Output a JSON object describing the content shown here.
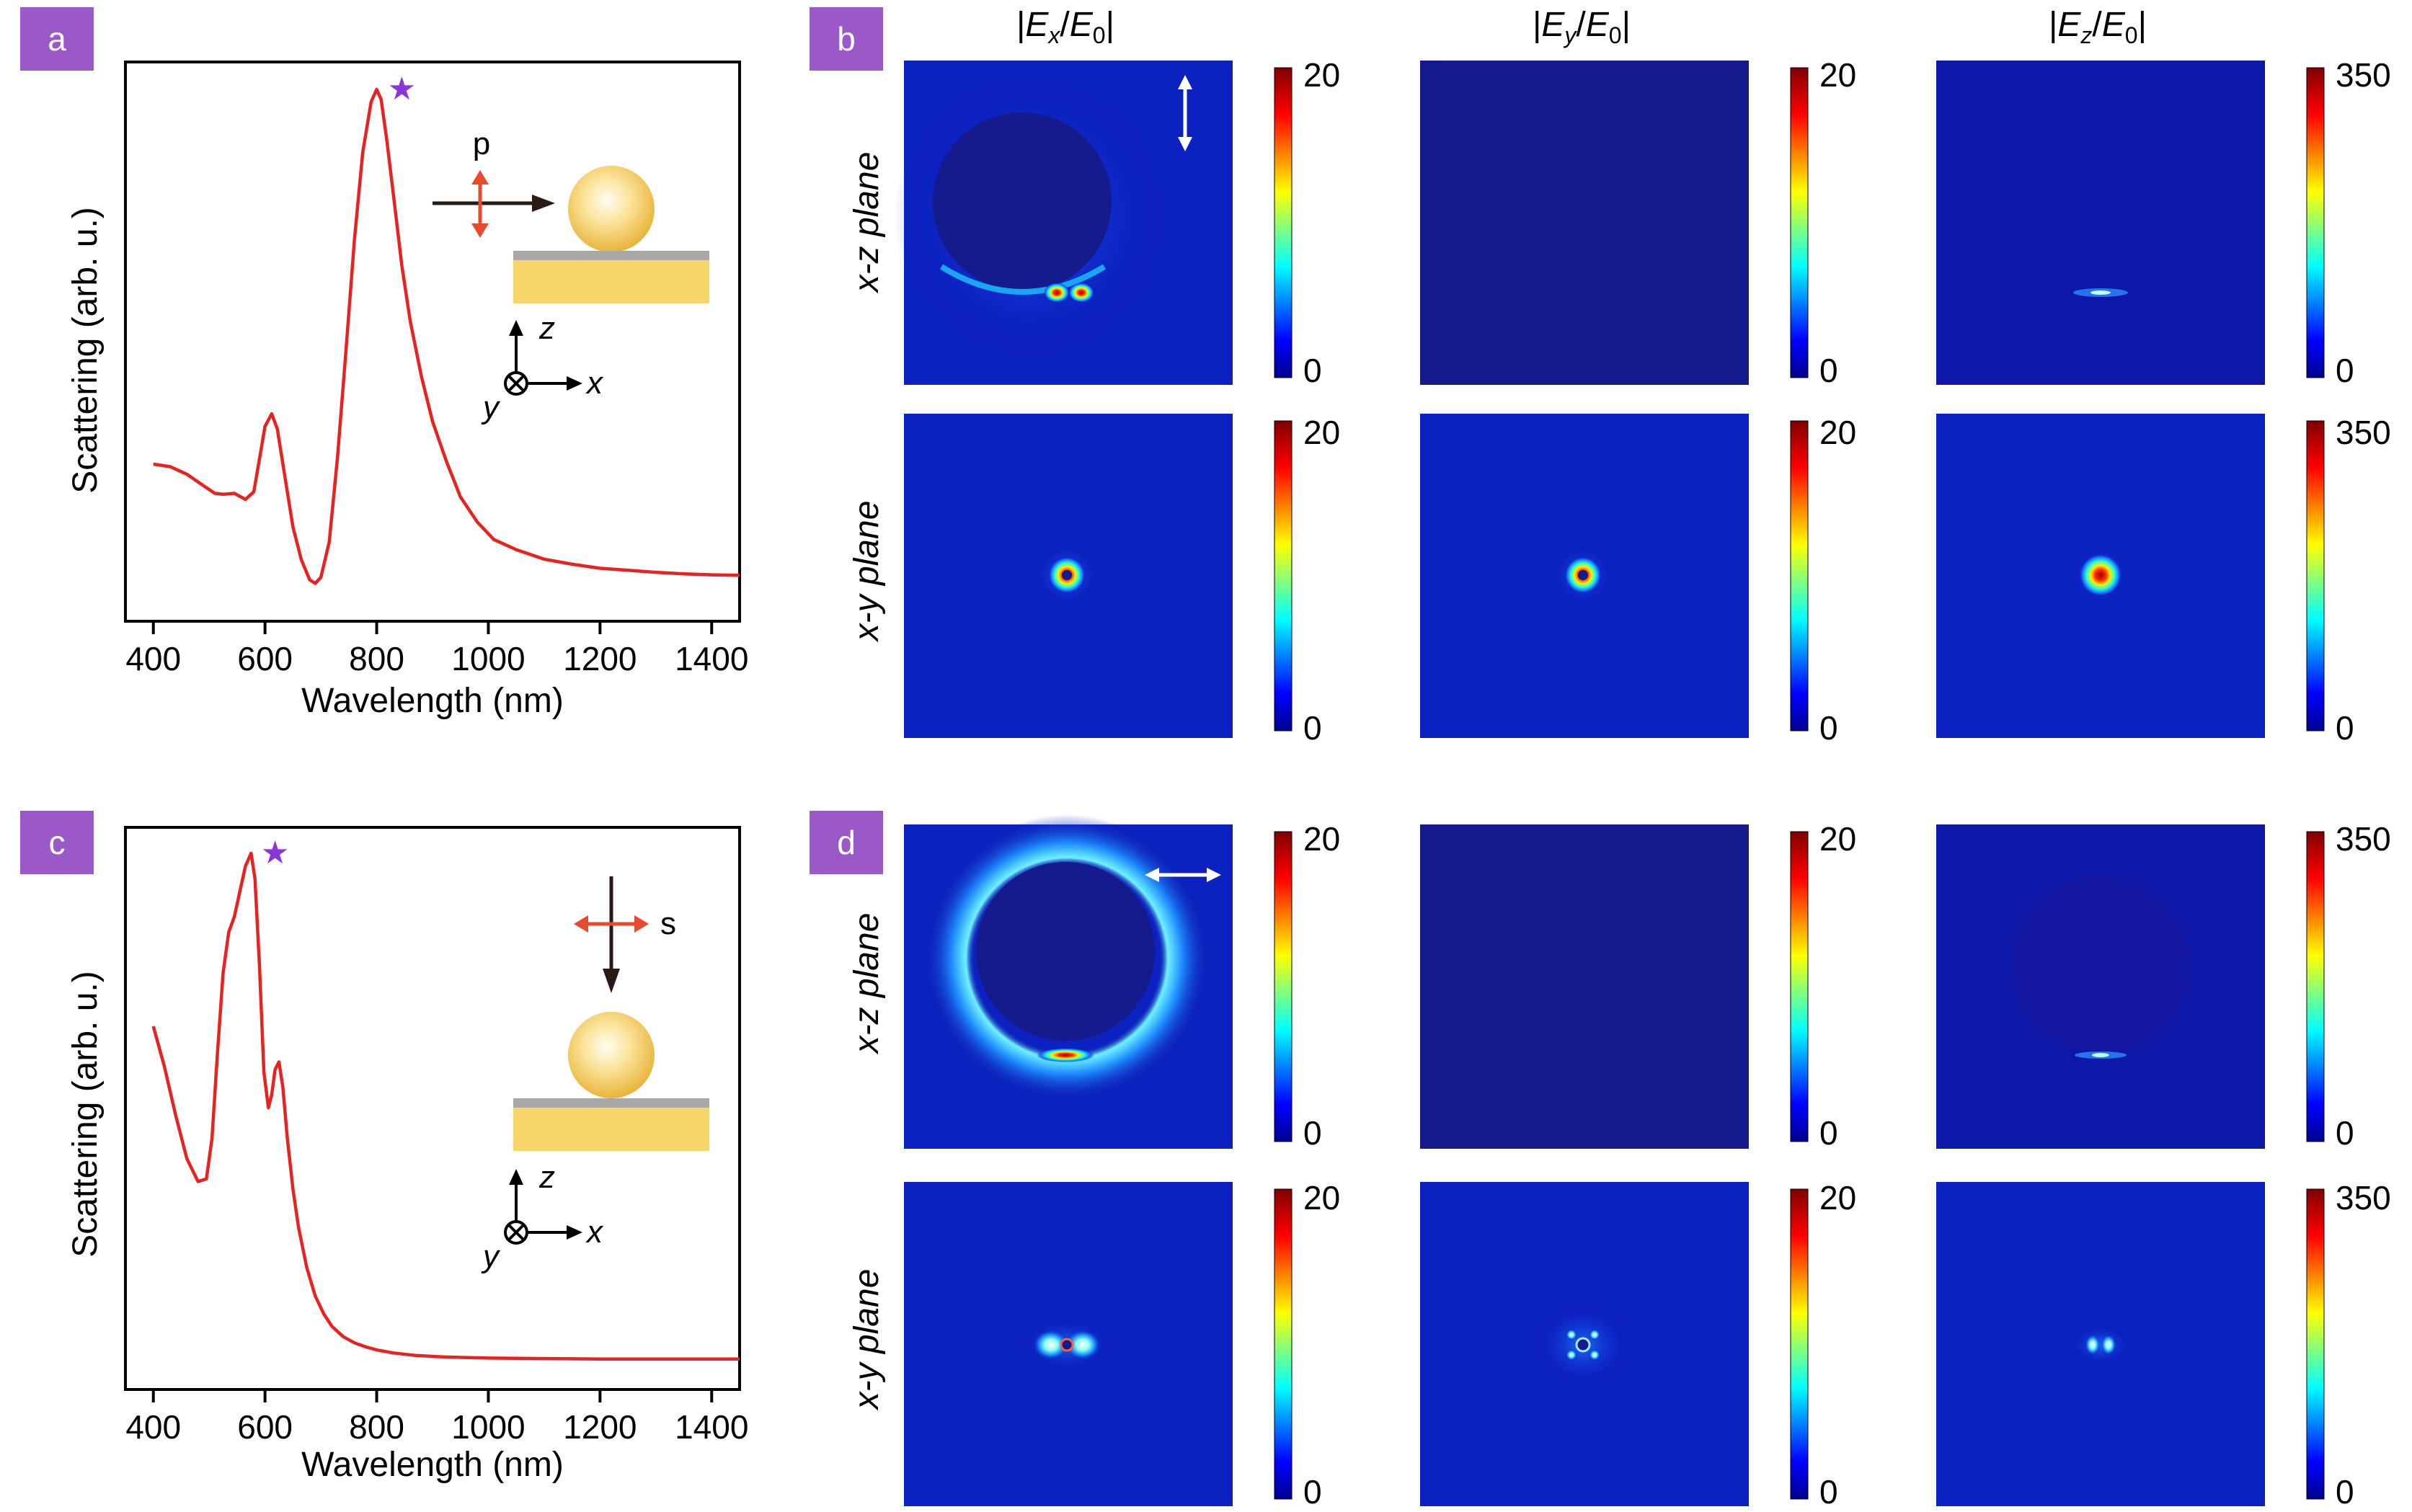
{
  "chart_data": [
    {
      "panel": "a",
      "type": "line",
      "xlabel": "Wavelength (nm)",
      "ylabel": "Scattering (arb. u.)",
      "xlim": [
        350,
        1450
      ],
      "ylim": [
        0,
        1
      ],
      "xticks": [
        "400",
        "600",
        "800",
        "1000",
        "1200",
        "1400"
      ],
      "series": [
        {
          "name": "scattering",
          "color": "#e8231f",
          "x": [
            400,
            430,
            460,
            490,
            510,
            525,
            545,
            565,
            580,
            590,
            600,
            612,
            622,
            635,
            650,
            665,
            680,
            690,
            700,
            715,
            730,
            745,
            760,
            775,
            790,
            800,
            808,
            818,
            830,
            845,
            860,
            880,
            900,
            925,
            950,
            980,
            1010,
            1050,
            1100,
            1150,
            1200,
            1250,
            1300,
            1350,
            1400,
            1450
          ],
          "y": [
            0.255,
            0.25,
            0.235,
            0.212,
            0.197,
            0.195,
            0.197,
            0.185,
            0.2,
            0.265,
            0.33,
            0.355,
            0.325,
            0.235,
            0.13,
            0.065,
            0.025,
            0.018,
            0.03,
            0.1,
            0.27,
            0.48,
            0.7,
            0.875,
            0.975,
            1.0,
            0.98,
            0.9,
            0.79,
            0.65,
            0.54,
            0.43,
            0.34,
            0.26,
            0.19,
            0.14,
            0.105,
            0.085,
            0.066,
            0.056,
            0.048,
            0.044,
            0.04,
            0.037,
            0.035,
            0.034
          ]
        }
      ],
      "marker": {
        "x": 845,
        "label": "★"
      },
      "inset": {
        "polarization": "p",
        "axes": [
          "z",
          "x",
          "y"
        ]
      }
    },
    {
      "panel": "c",
      "type": "line",
      "xlabel": "Wavelength (nm)",
      "ylabel": "Scattering (arb. u.)",
      "xlim": [
        350,
        1450
      ],
      "ylim": [
        0,
        1
      ],
      "xticks": [
        "400",
        "600",
        "800",
        "1000",
        "1200",
        "1400"
      ],
      "series": [
        {
          "name": "scattering",
          "color": "#e8231f",
          "x": [
            400,
            420,
            440,
            460,
            480,
            495,
            505,
            515,
            525,
            535,
            545,
            555,
            565,
            575,
            582,
            590,
            598,
            606,
            612,
            618,
            625,
            632,
            640,
            650,
            660,
            675,
            690,
            705,
            720,
            740,
            760,
            780,
            800,
            830,
            870,
            920,
            1000,
            1100,
            1200,
            1300,
            1400,
            1450
          ],
          "y": [
            0.66,
            0.58,
            0.485,
            0.4,
            0.355,
            0.36,
            0.44,
            0.61,
            0.765,
            0.845,
            0.875,
            0.925,
            0.975,
            1.0,
            0.95,
            0.78,
            0.57,
            0.5,
            0.525,
            0.575,
            0.59,
            0.54,
            0.44,
            0.34,
            0.265,
            0.185,
            0.13,
            0.095,
            0.07,
            0.05,
            0.038,
            0.03,
            0.024,
            0.018,
            0.013,
            0.01,
            0.008,
            0.007,
            0.006,
            0.006,
            0.006,
            0.006
          ]
        }
      ],
      "marker": {
        "x": 618,
        "label": "★"
      },
      "inset": {
        "polarization": "s",
        "axes": [
          "z",
          "x",
          "y"
        ]
      }
    },
    {
      "panel": "b",
      "type": "heatmap",
      "columns": [
        "|Ex/E0|",
        "|Ey/E0|",
        "|Ez/E0|"
      ],
      "rows": [
        "x-z plane",
        "x-y plane"
      ],
      "colorbar_max": [
        "20",
        "20",
        "350"
      ],
      "colorbar_min": "0",
      "incident_polarization": "vertical"
    },
    {
      "panel": "d",
      "type": "heatmap",
      "columns": [
        "|Ex/E0|",
        "|Ey/E0|",
        "|Ez/E0|"
      ],
      "rows": [
        "x-z plane",
        "x-y plane"
      ],
      "colorbar_max": [
        "20",
        "20",
        "350"
      ],
      "colorbar_min": "0",
      "incident_polarization": "horizontal"
    }
  ],
  "labels": {
    "a": "a",
    "b": "b",
    "c": "c",
    "d": "d",
    "col_ex_a": "E",
    "col_ex_sub": "x",
    "col_ey_sub": "y",
    "col_ez_sub": "z",
    "col_e0": "E",
    "col_e0_sub": "0",
    "row_xz": "x-z plane",
    "row_xy": "x-y plane",
    "cb20": "20",
    "cb350": "350",
    "cb0": "0",
    "pol_p": "p",
    "pol_s": "s",
    "ax_z": "z",
    "ax_x": "x",
    "ax_y": "y",
    "star": "★"
  },
  "colors": {
    "panel_label_bg": "#9b59c8",
    "curve": "#e8231f",
    "star": "#8a35d6",
    "field_bg": "#0a10a8",
    "field_bg_dark": "#151a8c",
    "gold": "#f9d66a",
    "substrate_grey": "#a8a8a8"
  }
}
